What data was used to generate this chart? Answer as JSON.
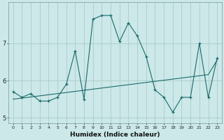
{
  "xlabel": "Humidex (Indice chaleur)",
  "ylabel": "",
  "bg_color": "#cce8e8",
  "grid_color": "#aacccc",
  "line_color": "#1a6b6b",
  "x_values": [
    0,
    1,
    2,
    3,
    4,
    5,
    6,
    7,
    8,
    9,
    10,
    11,
    12,
    13,
    14,
    15,
    16,
    17,
    18,
    19,
    20,
    21,
    22,
    23
  ],
  "y_main": [
    5.7,
    5.55,
    5.65,
    5.45,
    5.45,
    5.55,
    5.9,
    6.8,
    5.5,
    7.65,
    7.75,
    7.75,
    7.05,
    7.55,
    7.2,
    6.65,
    5.75,
    5.55,
    5.15,
    5.55,
    5.55,
    7.0,
    5.55,
    6.6
  ],
  "y_trend": [
    5.5,
    5.53,
    5.56,
    5.59,
    5.62,
    5.65,
    5.68,
    5.71,
    5.74,
    5.77,
    5.8,
    5.83,
    5.86,
    5.89,
    5.92,
    5.95,
    5.98,
    6.01,
    6.04,
    6.07,
    6.1,
    6.13,
    6.16,
    6.55
  ],
  "yticks": [
    5,
    6,
    7
  ],
  "xticks": [
    0,
    1,
    2,
    3,
    4,
    5,
    6,
    7,
    8,
    9,
    10,
    11,
    12,
    13,
    14,
    15,
    16,
    17,
    18,
    19,
    20,
    21,
    22,
    23
  ],
  "ylim": [
    4.85,
    8.1
  ],
  "xlim": [
    -0.5,
    23.5
  ]
}
